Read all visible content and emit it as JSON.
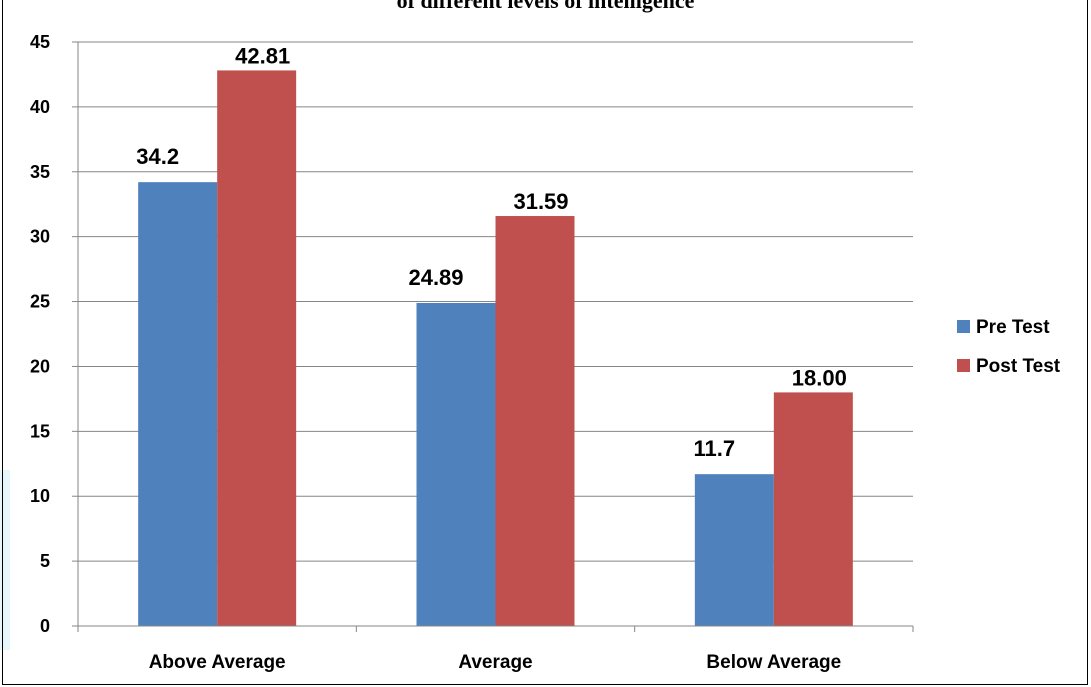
{
  "chart_data": {
    "type": "bar",
    "title": "of different levels of intelligence",
    "categories": [
      "Above Average",
      "Average",
      "Below Average"
    ],
    "series": [
      {
        "name": "Pre Test",
        "values": [
          34.2,
          24.89,
          11.7
        ],
        "labels": [
          "34.2",
          "24.89",
          "11.7"
        ],
        "color": "#4f81bd"
      },
      {
        "name": "Post Test",
        "values": [
          42.81,
          31.59,
          18.0
        ],
        "labels": [
          "42.81",
          "31.59",
          "18.00"
        ],
        "color": "#c0504d"
      }
    ],
    "ylim": [
      0,
      45
    ],
    "yticks": [
      0,
      5,
      10,
      15,
      20,
      25,
      30,
      35,
      40,
      45
    ],
    "xlabel": "",
    "ylabel": "",
    "grid": true,
    "legend": "right"
  }
}
